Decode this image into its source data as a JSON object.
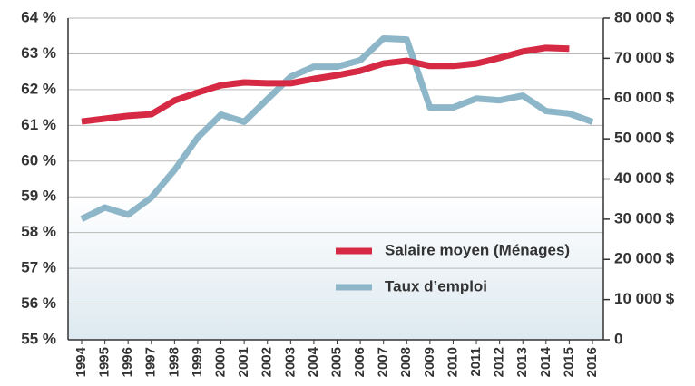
{
  "chart_data": {
    "type": "line",
    "categories": [
      "1994",
      "1995",
      "1996",
      "1997",
      "1998",
      "1999",
      "2000",
      "2001",
      "2002",
      "2003",
      "2004",
      "2005",
      "2006",
      "2007",
      "2008",
      "2009",
      "2010",
      "2011",
      "2012",
      "2013",
      "2014",
      "2015",
      "2016"
    ],
    "series": [
      {
        "name": "Salaire moyen (Ménages)",
        "color": "#d62a44",
        "axis": "y2",
        "values": [
          54300,
          55000,
          55700,
          56100,
          59500,
          61500,
          63300,
          64000,
          63800,
          63800,
          64900,
          65800,
          66900,
          68700,
          69400,
          68100,
          68100,
          68700,
          70100,
          71700,
          72600,
          72400,
          null
        ]
      },
      {
        "name": "Taux d’emploi",
        "color": "#8db6c9",
        "values": [
          58.38,
          58.7,
          58.5,
          58.98,
          59.75,
          60.66,
          61.3,
          61.1,
          61.73,
          62.36,
          62.64,
          62.64,
          62.82,
          63.43,
          63.4,
          61.5,
          61.5,
          61.75,
          61.7,
          61.83,
          61.4,
          61.33,
          61.1
        ]
      }
    ],
    "ylim": [
      55,
      64
    ],
    "yticks": [
      {
        "value": 55,
        "label": "55 %"
      },
      {
        "value": 56,
        "label": "56 %"
      },
      {
        "value": 57,
        "label": "57 %"
      },
      {
        "value": 58,
        "label": "58 %"
      },
      {
        "value": 59,
        "label": "59 %"
      },
      {
        "value": 60,
        "label": "60 %"
      },
      {
        "value": 61,
        "label": "61 %"
      },
      {
        "value": 62,
        "label": "62 %"
      },
      {
        "value": 63,
        "label": "63 %"
      },
      {
        "value": 64,
        "label": "64 %"
      }
    ],
    "y2lim": [
      0,
      80000
    ],
    "y2ticks": [
      {
        "value": 0,
        "label": "0"
      },
      {
        "value": 10000,
        "label": "10 000 $"
      },
      {
        "value": 20000,
        "label": "20 000 $"
      },
      {
        "value": 30000,
        "label": "30 000 $"
      },
      {
        "value": 40000,
        "label": "40 000 $"
      },
      {
        "value": 50000,
        "label": "50 000 $"
      },
      {
        "value": 60000,
        "label": "60 000 $"
      },
      {
        "value": 70000,
        "label": "70 000 $"
      },
      {
        "value": 80000,
        "label": "80 000 $"
      }
    ],
    "grid": true,
    "legend": "lower right"
  }
}
